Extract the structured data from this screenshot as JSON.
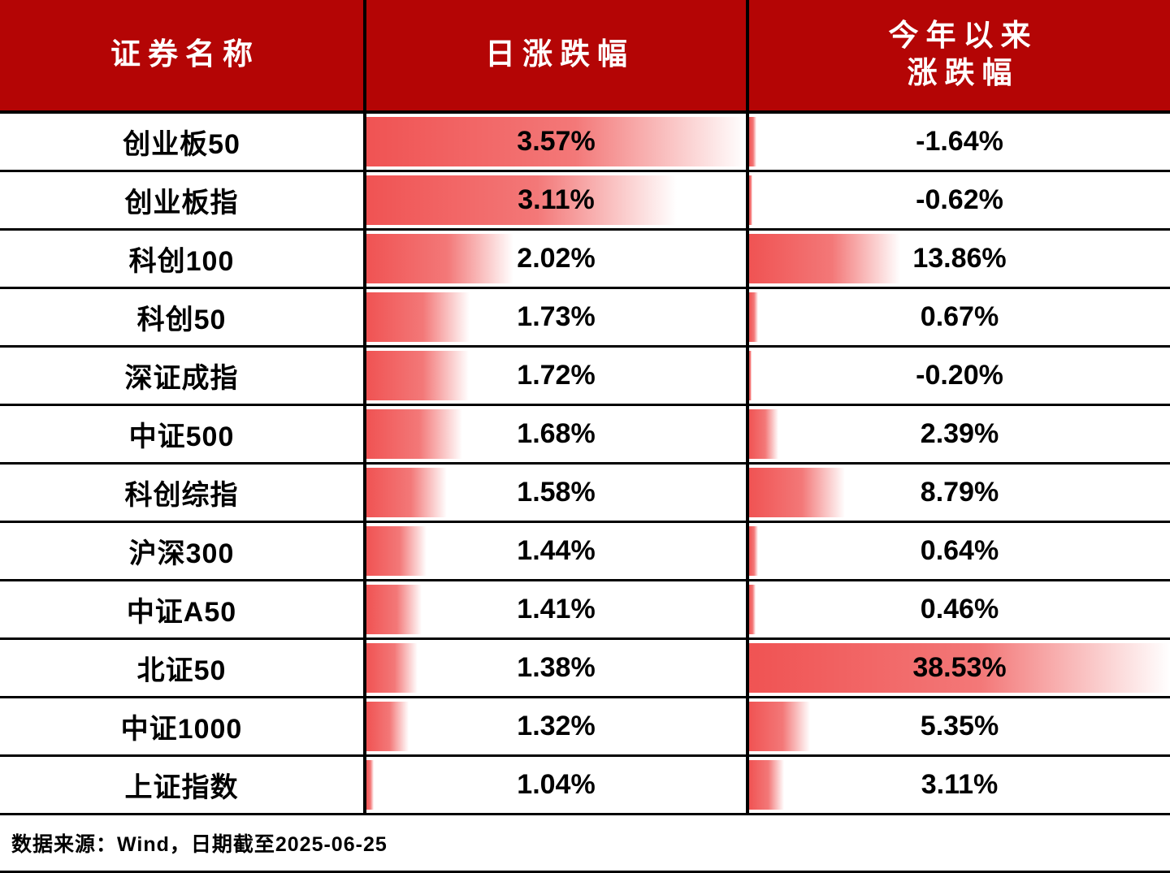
{
  "header": {
    "col_name": "证券名称",
    "col_day": "日涨跌幅",
    "col_ytd_line1": "今年以来",
    "col_ytd_line2": "涨跌幅"
  },
  "footer": {
    "source_note": "数据来源：Wind，日期截至2025-06-25"
  },
  "colors": {
    "header_bg": "#b40505",
    "bar_red": "#f05353",
    "border": "#000000"
  },
  "chart_data": {
    "type": "table",
    "title": "",
    "columns": [
      "证券名称",
      "日涨跌幅",
      "今年以来涨跌幅"
    ],
    "day_range": [
      1.04,
      3.57
    ],
    "ytd_range": [
      -1.64,
      38.53
    ],
    "bar_style": "red gradient data bars, length proportional to value",
    "rows": [
      {
        "name": "创业板50",
        "day_pct": 3.57,
        "ytd_pct": -1.64,
        "day_label": "3.57%",
        "ytd_label": "-1.64%",
        "day_bar": 100,
        "ytd_bar": 1.8
      },
      {
        "name": "创业板指",
        "day_pct": 3.11,
        "ytd_pct": -0.62,
        "day_label": "3.11%",
        "ytd_label": "-0.62%",
        "day_bar": 81.8,
        "ytd_bar": 0.8
      },
      {
        "name": "科创100",
        "day_pct": 2.02,
        "ytd_pct": 13.86,
        "day_label": "2.02%",
        "ytd_label": "13.86%",
        "day_bar": 38.7,
        "ytd_bar": 36.0
      },
      {
        "name": "科创50",
        "day_pct": 1.73,
        "ytd_pct": 0.67,
        "day_label": "1.73%",
        "ytd_label": "0.67%",
        "day_bar": 27.3,
        "ytd_bar": 2.2
      },
      {
        "name": "深证成指",
        "day_pct": 1.72,
        "ytd_pct": -0.2,
        "day_label": "1.72%",
        "ytd_label": "-0.20%",
        "day_bar": 26.9,
        "ytd_bar": 0.5
      },
      {
        "name": "中证500",
        "day_pct": 1.68,
        "ytd_pct": 2.39,
        "day_label": "1.68%",
        "ytd_label": "2.39%",
        "day_bar": 25.3,
        "ytd_bar": 7.0
      },
      {
        "name": "科创综指",
        "day_pct": 1.58,
        "ytd_pct": 8.79,
        "day_label": "1.58%",
        "ytd_label": "8.79%",
        "day_bar": 21.3,
        "ytd_bar": 22.8
      },
      {
        "name": "沪深300",
        "day_pct": 1.44,
        "ytd_pct": 0.64,
        "day_label": "1.44%",
        "ytd_label": "0.64%",
        "day_bar": 15.8,
        "ytd_bar": 2.1
      },
      {
        "name": "中证A50",
        "day_pct": 1.41,
        "ytd_pct": 0.46,
        "day_label": "1.41%",
        "ytd_label": "0.46%",
        "day_bar": 14.6,
        "ytd_bar": 1.6
      },
      {
        "name": "北证50",
        "day_pct": 1.38,
        "ytd_pct": 38.53,
        "day_label": "1.38%",
        "ytd_label": "38.53%",
        "day_bar": 13.4,
        "ytd_bar": 100
      },
      {
        "name": "中证1000",
        "day_pct": 1.32,
        "ytd_pct": 5.35,
        "day_label": "1.32%",
        "ytd_label": "5.35%",
        "day_bar": 11.1,
        "ytd_bar": 14.5
      },
      {
        "name": "上证指数",
        "day_pct": 1.04,
        "ytd_pct": 3.11,
        "day_label": "1.04%",
        "ytd_label": "3.11%",
        "day_bar": 2.0,
        "ytd_bar": 8.3
      }
    ]
  }
}
